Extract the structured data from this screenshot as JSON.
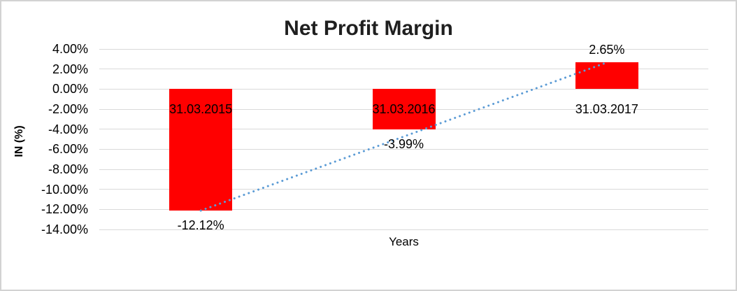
{
  "chart_data": {
    "type": "bar",
    "title": "Net Profit Margin",
    "xlabel": "Years",
    "ylabel": "IN (%)",
    "categories": [
      "31.03.2015",
      "31.03.2016",
      "31.03.2017"
    ],
    "values": [
      -12.12,
      -3.99,
      2.65
    ],
    "value_labels": [
      "-12.12%",
      "-3.99%",
      "2.65%"
    ],
    "ytick_labels": [
      "4.00%",
      "2.00%",
      "0.00%",
      "-2.00%",
      "-4.00%",
      "-6.00%",
      "-8.00%",
      "-10.00%",
      "-12.00%",
      "-14.00%"
    ],
    "ylim": [
      -14,
      4
    ],
    "grid": true,
    "legend_position": "none",
    "bar_color": "#FF0000",
    "gridline_color": "#D9D9D9",
    "text_color": "#000000",
    "trendline": {
      "type": "linear",
      "style": "dotted",
      "color": "#5B9BD5",
      "from_value": -12.12,
      "to_value": 2.65
    }
  }
}
